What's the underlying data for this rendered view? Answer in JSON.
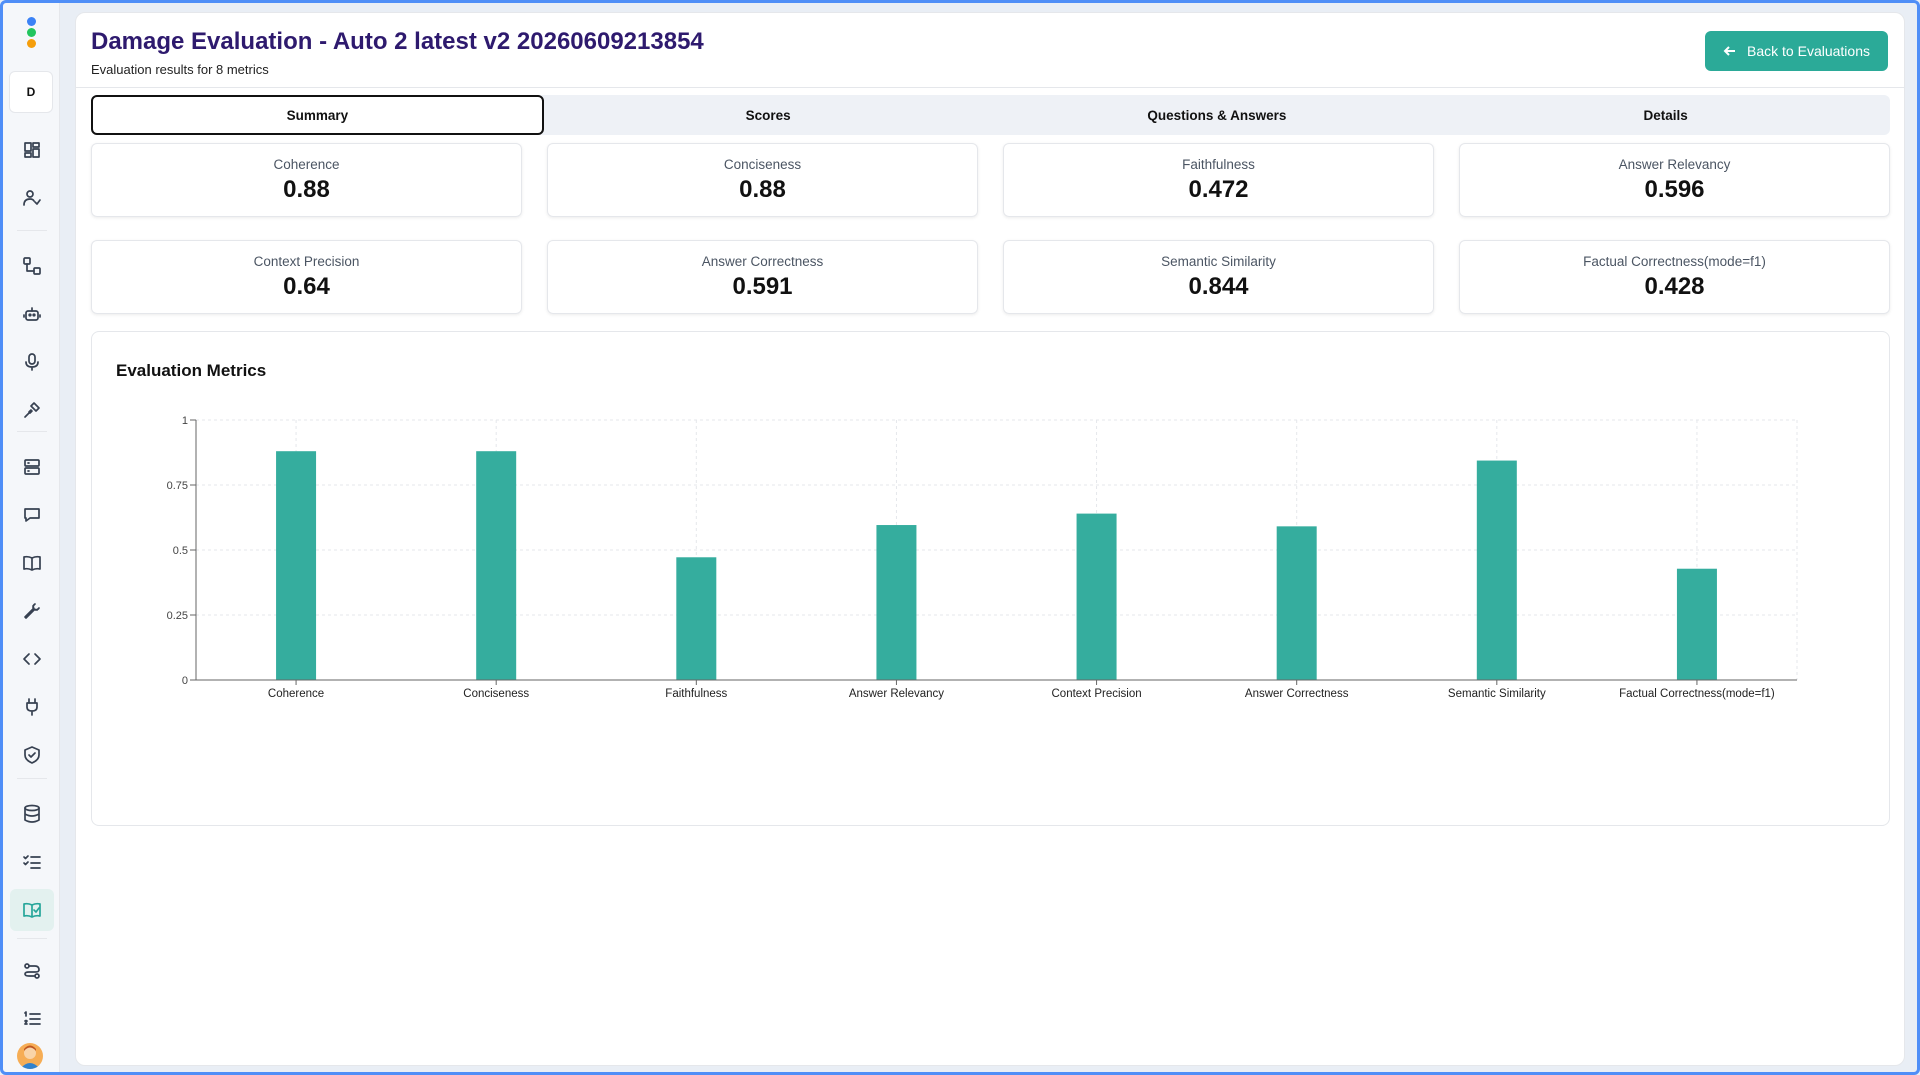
{
  "sidebar": {
    "workspace_initial": "D",
    "icons": [
      "dashboard-icon",
      "user-check-icon",
      "workflow-icon",
      "bot-icon",
      "microphone-icon",
      "plug-connect-icon",
      "server-icon",
      "chat-icon",
      "book-icon",
      "wrench-icon",
      "code-icon",
      "plug-icon",
      "shield-check-icon",
      "database-icon",
      "checklist-icon",
      "book-check-icon",
      "flow-icon",
      "list-ordered-icon"
    ],
    "active": "book-check-icon"
  },
  "header": {
    "title": "Damage Evaluation - Auto 2 latest v2 20260609213854",
    "subtitle": "Evaluation results for 8 metrics",
    "back_label": "Back to Evaluations"
  },
  "tabs": [
    {
      "label": "Summary",
      "active": true
    },
    {
      "label": "Scores",
      "active": false
    },
    {
      "label": "Questions & Answers",
      "active": false
    },
    {
      "label": "Details",
      "active": false
    }
  ],
  "metrics": [
    {
      "label": "Coherence",
      "value": "0.88"
    },
    {
      "label": "Conciseness",
      "value": "0.88"
    },
    {
      "label": "Faithfulness",
      "value": "0.472"
    },
    {
      "label": "Answer Relevancy",
      "value": "0.596"
    },
    {
      "label": "Context Precision",
      "value": "0.64"
    },
    {
      "label": "Answer Correctness",
      "value": "0.591"
    },
    {
      "label": "Semantic Similarity",
      "value": "0.844"
    },
    {
      "label": "Factual Correctness(mode=f1)",
      "value": "0.428"
    }
  ],
  "chart": {
    "title": "Evaluation Metrics"
  },
  "chart_data": {
    "type": "bar",
    "categories": [
      "Coherence",
      "Conciseness",
      "Faithfulness",
      "Answer Relevancy",
      "Context Precision",
      "Answer Correctness",
      "Semantic Similarity",
      "Factual Correctness(mode=f1)"
    ],
    "values": [
      0.88,
      0.88,
      0.472,
      0.596,
      0.64,
      0.591,
      0.844,
      0.428
    ],
    "ylim": [
      0,
      1
    ],
    "yticks": [
      "0",
      "0.25",
      "0.5",
      "0.75",
      "1"
    ],
    "grid": true,
    "color": "#35ad9e"
  }
}
